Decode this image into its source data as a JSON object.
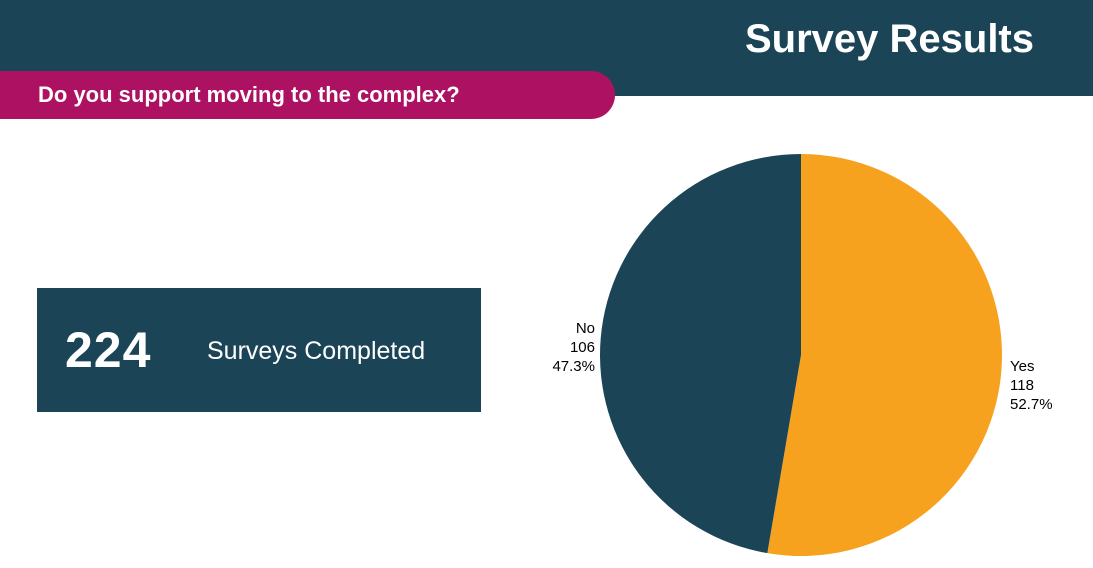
{
  "header": {
    "title": "Survey Results"
  },
  "question": {
    "text": "Do you support moving to the complex?"
  },
  "kpi": {
    "number": "224",
    "label": "Surveys Completed"
  },
  "colors": {
    "header_bg": "#1b4557",
    "question_bg": "#ad1262",
    "yes": "#f7a21f",
    "no": "#1b4557"
  },
  "chart_data": {
    "type": "pie",
    "categories": [
      "Yes",
      "No"
    ],
    "values": [
      118,
      106
    ],
    "percent_labels": [
      "52.7%",
      "47.3%"
    ],
    "slices": [
      {
        "label": "Yes",
        "value": 118,
        "percent": "52.7%",
        "color": "#f7a21f"
      },
      {
        "label": "No",
        "value": 106,
        "percent": "47.3%",
        "color": "#1b4557"
      }
    ]
  }
}
